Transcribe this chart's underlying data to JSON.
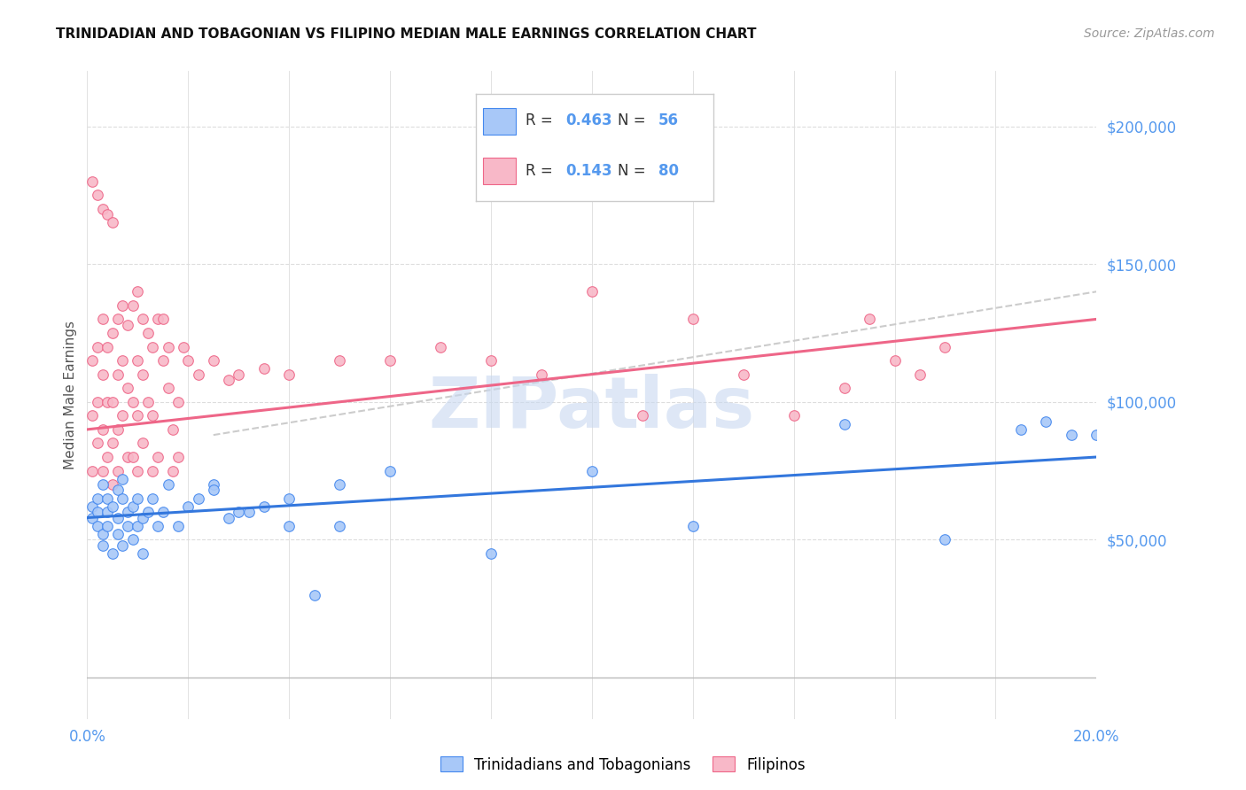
{
  "title": "TRINIDADIAN AND TOBAGONIAN VS FILIPINO MEDIAN MALE EARNINGS CORRELATION CHART",
  "source": "Source: ZipAtlas.com",
  "ylabel": "Median Male Earnings",
  "xlim": [
    0.0,
    0.2
  ],
  "ylim": [
    -15000,
    220000
  ],
  "yticks": [
    0,
    50000,
    100000,
    150000,
    200000
  ],
  "ytick_labels": [
    "",
    "$50,000",
    "$100,000",
    "$150,000",
    "$200,000"
  ],
  "xticks": [
    0.0,
    0.02,
    0.04,
    0.06,
    0.08,
    0.1,
    0.12,
    0.14,
    0.16,
    0.18,
    0.2
  ],
  "blue_color": "#A8C8F8",
  "pink_color": "#F8B8C8",
  "blue_edge_color": "#4488EE",
  "pink_edge_color": "#EE6688",
  "blue_line_color": "#3377DD",
  "pink_line_color": "#EE6688",
  "dash_line_color": "#CCCCCC",
  "title_color": "#111111",
  "axis_label_color": "#5599EE",
  "ylabel_color": "#555555",
  "watermark_color": "#C8D8F0",
  "legend_r_blue": "0.463",
  "legend_n_blue": "56",
  "legend_r_pink": "0.143",
  "legend_n_pink": "80",
  "blue_scatter_x": [
    0.001,
    0.001,
    0.002,
    0.002,
    0.002,
    0.003,
    0.003,
    0.003,
    0.004,
    0.004,
    0.004,
    0.005,
    0.005,
    0.006,
    0.006,
    0.006,
    0.007,
    0.007,
    0.007,
    0.008,
    0.008,
    0.009,
    0.009,
    0.01,
    0.01,
    0.011,
    0.011,
    0.012,
    0.013,
    0.014,
    0.015,
    0.016,
    0.018,
    0.02,
    0.022,
    0.025,
    0.028,
    0.032,
    0.04,
    0.045,
    0.05,
    0.06,
    0.08,
    0.1,
    0.12,
    0.15,
    0.17,
    0.185,
    0.19,
    0.195,
    0.2,
    0.05,
    0.025,
    0.035,
    0.03,
    0.04
  ],
  "blue_scatter_y": [
    62000,
    58000,
    60000,
    55000,
    65000,
    52000,
    48000,
    70000,
    65000,
    55000,
    60000,
    62000,
    45000,
    58000,
    52000,
    68000,
    65000,
    48000,
    72000,
    55000,
    60000,
    62000,
    50000,
    65000,
    55000,
    58000,
    45000,
    60000,
    65000,
    55000,
    60000,
    70000,
    55000,
    62000,
    65000,
    70000,
    58000,
    60000,
    65000,
    30000,
    55000,
    75000,
    45000,
    75000,
    55000,
    92000,
    50000,
    90000,
    93000,
    88000,
    88000,
    70000,
    68000,
    62000,
    60000,
    55000
  ],
  "pink_scatter_x": [
    0.001,
    0.001,
    0.001,
    0.002,
    0.002,
    0.002,
    0.003,
    0.003,
    0.003,
    0.003,
    0.004,
    0.004,
    0.004,
    0.005,
    0.005,
    0.005,
    0.005,
    0.006,
    0.006,
    0.006,
    0.006,
    0.007,
    0.007,
    0.007,
    0.008,
    0.008,
    0.008,
    0.009,
    0.009,
    0.009,
    0.01,
    0.01,
    0.01,
    0.01,
    0.011,
    0.011,
    0.011,
    0.012,
    0.012,
    0.013,
    0.013,
    0.013,
    0.014,
    0.014,
    0.015,
    0.015,
    0.016,
    0.016,
    0.017,
    0.017,
    0.018,
    0.018,
    0.019,
    0.02,
    0.022,
    0.025,
    0.028,
    0.03,
    0.035,
    0.04,
    0.05,
    0.06,
    0.07,
    0.08,
    0.09,
    0.1,
    0.11,
    0.12,
    0.13,
    0.14,
    0.15,
    0.155,
    0.16,
    0.165,
    0.17,
    0.001,
    0.002,
    0.003,
    0.004,
    0.005
  ],
  "pink_scatter_y": [
    75000,
    95000,
    115000,
    85000,
    100000,
    120000,
    90000,
    110000,
    130000,
    75000,
    100000,
    120000,
    80000,
    125000,
    100000,
    85000,
    70000,
    130000,
    110000,
    90000,
    75000,
    135000,
    115000,
    95000,
    128000,
    105000,
    80000,
    135000,
    100000,
    80000,
    140000,
    115000,
    95000,
    75000,
    130000,
    110000,
    85000,
    125000,
    100000,
    120000,
    95000,
    75000,
    130000,
    80000,
    130000,
    115000,
    120000,
    105000,
    90000,
    75000,
    100000,
    80000,
    120000,
    115000,
    110000,
    115000,
    108000,
    110000,
    112000,
    110000,
    115000,
    115000,
    120000,
    115000,
    110000,
    140000,
    95000,
    130000,
    110000,
    95000,
    105000,
    130000,
    115000,
    110000,
    120000,
    180000,
    175000,
    170000,
    168000,
    165000
  ]
}
